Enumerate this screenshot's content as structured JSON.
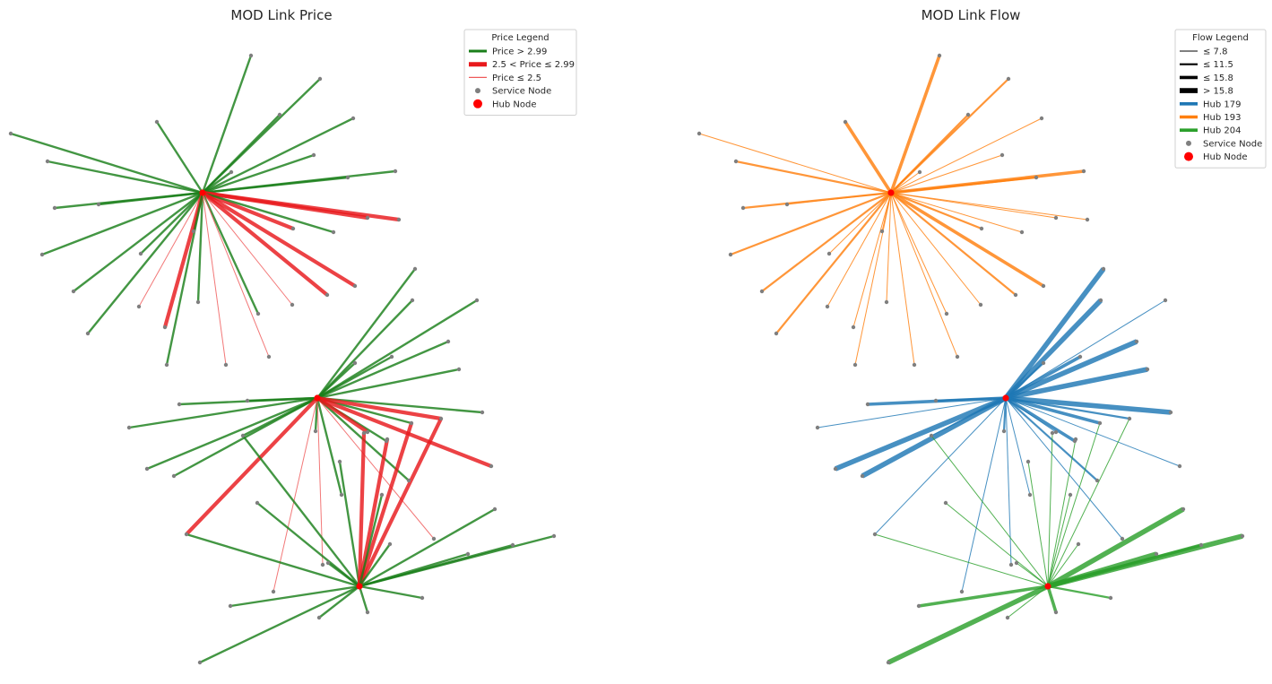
{
  "panels": [
    {
      "title": "MOD Link Price",
      "legend": {
        "title": "Price Legend",
        "entries": [
          {
            "label": "Price > 2.99",
            "kind": "line",
            "color": "#1a7f1a"
          },
          {
            "label": "2.5 < Price ≤ 2.99",
            "kind": "line",
            "color": "#e8191c"
          },
          {
            "label": "Price ≤ 2.5",
            "kind": "line",
            "color": "#ef5a5a"
          },
          {
            "label": "Service Node",
            "kind": "dot",
            "color": "#7f7f7f"
          },
          {
            "label": "Hub Node",
            "kind": "dot",
            "color": "#ff0000"
          }
        ]
      },
      "colors": {
        "high": "#1a7f1a",
        "mid": "#e8191c",
        "low": "#ef5a5a"
      }
    },
    {
      "title": "MOD Link Flow",
      "legend": {
        "title": "Flow Legend",
        "entries": [
          {
            "label": "≤ 7.8",
            "kind": "line",
            "color": "#000000"
          },
          {
            "label": "≤ 11.5",
            "kind": "line",
            "color": "#000000"
          },
          {
            "label": "≤ 15.8",
            "kind": "line",
            "color": "#000000"
          },
          {
            "label": "> 15.8",
            "kind": "line",
            "color": "#000000"
          },
          {
            "label": "Hub 179",
            "kind": "line",
            "color": "#1f77b4"
          },
          {
            "label": "Hub 193",
            "kind": "line",
            "color": "#ff7f0e"
          },
          {
            "label": "Hub 204",
            "kind": "line",
            "color": "#2ca02c"
          },
          {
            "label": "Service Node",
            "kind": "dot",
            "color": "#7f7f7f"
          },
          {
            "label": "Hub Node",
            "kind": "dot",
            "color": "#ff0000"
          }
        ]
      },
      "colors": {
        "h179": "#1f77b4",
        "h193": "#ff7f0e",
        "h204": "#2ca02c"
      }
    }
  ],
  "network": {
    "hubs": [
      {
        "id": "193",
        "x": 226,
        "y": 215
      },
      {
        "id": "179",
        "x": 354,
        "y": 444
      },
      {
        "id": "204",
        "x": 401,
        "y": 654
      }
    ],
    "links": [
      {
        "hub": "193",
        "to": [
          280,
          62
        ],
        "price": "high",
        "flow": 3
      },
      {
        "hub": "193",
        "to": [
          357,
          88
        ],
        "price": "high",
        "flow": 2
      },
      {
        "hub": "193",
        "to": [
          312,
          128
        ],
        "price": "high",
        "flow": 2
      },
      {
        "hub": "193",
        "to": [
          394,
          132
        ],
        "price": "high",
        "flow": 1
      },
      {
        "hub": "193",
        "to": [
          175,
          136
        ],
        "price": "high",
        "flow": 3
      },
      {
        "hub": "193",
        "to": [
          12,
          149
        ],
        "price": "high",
        "flow": 1
      },
      {
        "hub": "193",
        "to": [
          350,
          173
        ],
        "price": "high",
        "flow": 1
      },
      {
        "hub": "193",
        "to": [
          53,
          180
        ],
        "price": "high",
        "flow": 2
      },
      {
        "hub": "193",
        "to": [
          258,
          192
        ],
        "price": "high",
        "flow": 1
      },
      {
        "hub": "193",
        "to": [
          441,
          191
        ],
        "price": "high",
        "flow": 3
      },
      {
        "hub": "193",
        "to": [
          388,
          198
        ],
        "price": "high",
        "flow": 2
      },
      {
        "hub": "193",
        "to": [
          61,
          232
        ],
        "price": "high",
        "flow": 2
      },
      {
        "hub": "193",
        "to": [
          110,
          228
        ],
        "price": "high",
        "flow": 1
      },
      {
        "hub": "193",
        "to": [
          47,
          284
        ],
        "price": "high",
        "flow": 2
      },
      {
        "hub": "193",
        "to": [
          82,
          325
        ],
        "price": "high",
        "flow": 2
      },
      {
        "hub": "193",
        "to": [
          98,
          372
        ],
        "price": "high",
        "flow": 2
      },
      {
        "hub": "193",
        "to": [
          157,
          283
        ],
        "price": "high",
        "flow": 1
      },
      {
        "hub": "193",
        "to": [
          216,
          258
        ],
        "price": "high",
        "flow": 1
      },
      {
        "hub": "193",
        "to": [
          221,
          337
        ],
        "price": "high",
        "flow": 1
      },
      {
        "hub": "193",
        "to": [
          155,
          342
        ],
        "price": "low",
        "flow": 1
      },
      {
        "hub": "193",
        "to": [
          184,
          365
        ],
        "price": "mid",
        "flow": 1
      },
      {
        "hub": "193",
        "to": [
          186,
          407
        ],
        "price": "high",
        "flow": 1
      },
      {
        "hub": "193",
        "to": [
          410,
          243
        ],
        "price": "mid",
        "flow": 1
      },
      {
        "hub": "193",
        "to": [
          445,
          245
        ],
        "price": "mid",
        "flow": 1
      },
      {
        "hub": "193",
        "to": [
          327,
          255
        ],
        "price": "mid",
        "flow": 2
      },
      {
        "hub": "193",
        "to": [
          372,
          259
        ],
        "price": "high",
        "flow": 1
      },
      {
        "hub": "193",
        "to": [
          365,
          329
        ],
        "price": "mid",
        "flow": 2
      },
      {
        "hub": "193",
        "to": [
          396,
          319
        ],
        "price": "mid",
        "flow": 3
      },
      {
        "hub": "193",
        "to": [
          326,
          340
        ],
        "price": "low",
        "flow": 1
      },
      {
        "hub": "193",
        "to": [
          288,
          350
        ],
        "price": "high",
        "flow": 1
      },
      {
        "hub": "193",
        "to": [
          300,
          398
        ],
        "price": "low",
        "flow": 1
      },
      {
        "hub": "193",
        "to": [
          252,
          407
        ],
        "price": "low",
        "flow": 1
      },
      {
        "hub": "179",
        "to": [
          463,
          300
        ],
        "price": "high",
        "flow": 4
      },
      {
        "hub": "179",
        "to": [
          460,
          335
        ],
        "price": "high",
        "flow": 4
      },
      {
        "hub": "179",
        "to": [
          532,
          335
        ],
        "price": "high",
        "flow": 1
      },
      {
        "hub": "179",
        "to": [
          500,
          381
        ],
        "price": "high",
        "flow": 4
      },
      {
        "hub": "179",
        "to": [
          437,
          398
        ],
        "price": "high",
        "flow": 3
      },
      {
        "hub": "179",
        "to": [
          512,
          412
        ],
        "price": "high",
        "flow": 4
      },
      {
        "hub": "179",
        "to": [
          396,
          405
        ],
        "price": "high",
        "flow": 2
      },
      {
        "hub": "179",
        "to": [
          538,
          460
        ],
        "price": "high",
        "flow": 4
      },
      {
        "hub": "179",
        "to": [
          200,
          451
        ],
        "price": "high",
        "flow": 3
      },
      {
        "hub": "179",
        "to": [
          144,
          477
        ],
        "price": "high",
        "flow": 1
      },
      {
        "hub": "179",
        "to": [
          276,
          447
        ],
        "price": "high",
        "flow": 2
      },
      {
        "hub": "179",
        "to": [
          164,
          523
        ],
        "price": "high",
        "flow": 4
      },
      {
        "hub": "179",
        "to": [
          194,
          531
        ],
        "price": "high",
        "flow": 4
      },
      {
        "hub": "179",
        "to": [
          271,
          486
        ],
        "price": "high",
        "flow": 1
      },
      {
        "hub": "179",
        "to": [
          459,
          472
        ],
        "price": "high",
        "flow": 3
      },
      {
        "hub": "179",
        "to": [
          492,
          467
        ],
        "price": "mid",
        "flow": 2
      },
      {
        "hub": "179",
        "to": [
          431,
          492
        ],
        "price": "high",
        "flow": 3
      },
      {
        "hub": "179",
        "to": [
          548,
          520
        ],
        "price": "mid",
        "flow": 1
      },
      {
        "hub": "179",
        "to": [
          456,
          536
        ],
        "price": "high",
        "flow": 2
      },
      {
        "hub": "179",
        "to": [
          381,
          552
        ],
        "price": "high",
        "flow": 1
      },
      {
        "hub": "179",
        "to": [
          352,
          481
        ],
        "price": "high",
        "flow": 2
      },
      {
        "hub": "179",
        "to": [
          208,
          596
        ],
        "price": "mid",
        "flow": 1
      },
      {
        "hub": "179",
        "to": [
          360,
          630
        ],
        "price": "low",
        "flow": 1
      },
      {
        "hub": "179",
        "to": [
          305,
          660
        ],
        "price": "low",
        "flow": 1
      },
      {
        "hub": "179",
        "to": [
          484,
          601
        ],
        "price": "low",
        "flow": 1
      },
      {
        "hub": "179",
        "to": [
          410,
          482
        ],
        "price": "mid",
        "flow": 1
      },
      {
        "hub": "204",
        "to": [
          618,
          598
        ],
        "price": "high",
        "flow": 4
      },
      {
        "hub": "204",
        "to": [
          552,
          568
        ],
        "price": "high",
        "flow": 4
      },
      {
        "hub": "204",
        "to": [
          572,
          608
        ],
        "price": "high",
        "flow": 3
      },
      {
        "hub": "204",
        "to": [
          522,
          618
        ],
        "price": "high",
        "flow": 4
      },
      {
        "hub": "204",
        "to": [
          471,
          667
        ],
        "price": "high",
        "flow": 2
      },
      {
        "hub": "204",
        "to": [
          410,
          683
        ],
        "price": "high",
        "flow": 3
      },
      {
        "hub": "204",
        "to": [
          356,
          689
        ],
        "price": "high",
        "flow": 1
      },
      {
        "hub": "204",
        "to": [
          257,
          676
        ],
        "price": "high",
        "flow": 3
      },
      {
        "hub": "204",
        "to": [
          223,
          739
        ],
        "price": "high",
        "flow": 4
      },
      {
        "hub": "204",
        "to": [
          287,
          561
        ],
        "price": "high",
        "flow": 1
      },
      {
        "hub": "204",
        "to": [
          208,
          596
        ],
        "price": "high",
        "flow": 1
      },
      {
        "hub": "204",
        "to": [
          271,
          486
        ],
        "price": "high",
        "flow": 1
      },
      {
        "hub": "204",
        "to": [
          379,
          515
        ],
        "price": "high",
        "flow": 1
      },
      {
        "hub": "204",
        "to": [
          406,
          483
        ],
        "price": "mid",
        "flow": 1
      },
      {
        "hub": "204",
        "to": [
          432,
          490
        ],
        "price": "mid",
        "flow": 1
      },
      {
        "hub": "204",
        "to": [
          459,
          472
        ],
        "price": "mid",
        "flow": 1
      },
      {
        "hub": "204",
        "to": [
          492,
          467
        ],
        "price": "mid",
        "flow": 1
      },
      {
        "hub": "204",
        "to": [
          426,
          552
        ],
        "price": "high",
        "flow": 1
      },
      {
        "hub": "204",
        "to": [
          435,
          607
        ],
        "price": "high",
        "flow": 1
      },
      {
        "hub": "204",
        "to": [
          366,
          628
        ],
        "price": "high",
        "flow": 1
      }
    ]
  }
}
